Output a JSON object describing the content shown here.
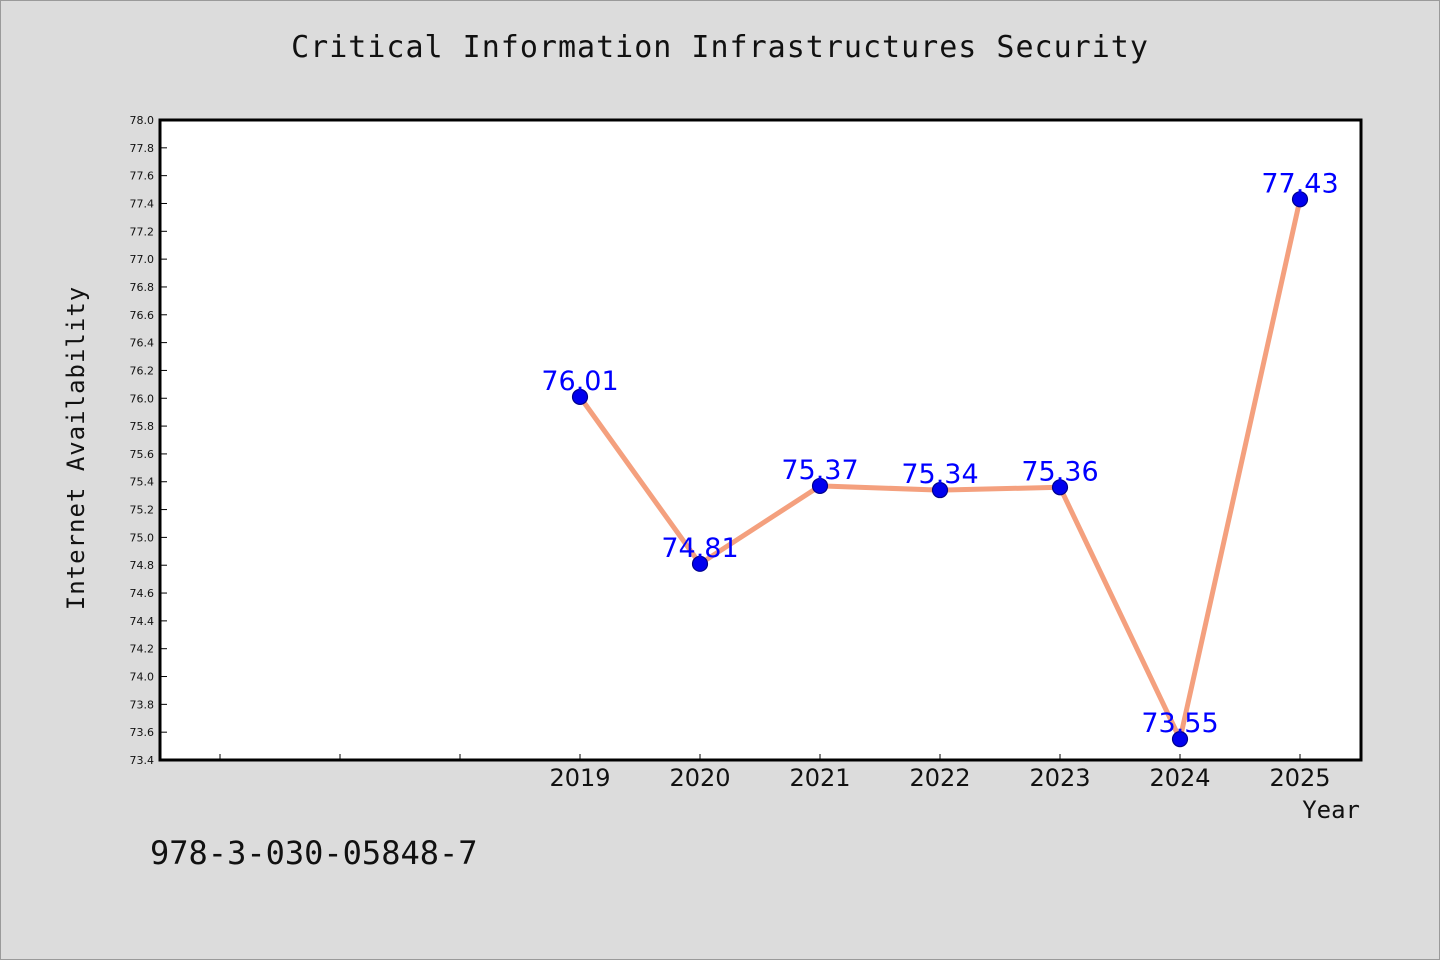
{
  "page": {
    "title": "Critical Information Infrastructures Security",
    "footer_text": "978-3-030-05848-7"
  },
  "chart_data": {
    "type": "line",
    "title": "Critical Information Infrastructures Security",
    "xlabel": "Year",
    "ylabel": "Internet Availability",
    "x": [
      "2019",
      "2020",
      "2021",
      "2022",
      "2023",
      "2024",
      "2025"
    ],
    "series": [
      {
        "values": [
          76.01,
          74.81,
          75.37,
          75.34,
          75.36,
          73.55,
          77.43
        ],
        "labels": [
          "76.01",
          "74.81",
          "75.37",
          "75.34",
          "75.36",
          "73.55",
          "77.43"
        ]
      }
    ],
    "ylim": [
      73.4,
      78.0
    ],
    "y_tick_step": 0.2,
    "x_category_slots": 10,
    "x_first_labeled_slot": 3,
    "grid": false,
    "colors": {
      "line": "#f4a07e",
      "marker": "#0000ee",
      "marker_edge": "#00008b",
      "data_label": "#0000ff",
      "plot_background": "#ffffff",
      "page_background": "#dcdcdc"
    }
  }
}
